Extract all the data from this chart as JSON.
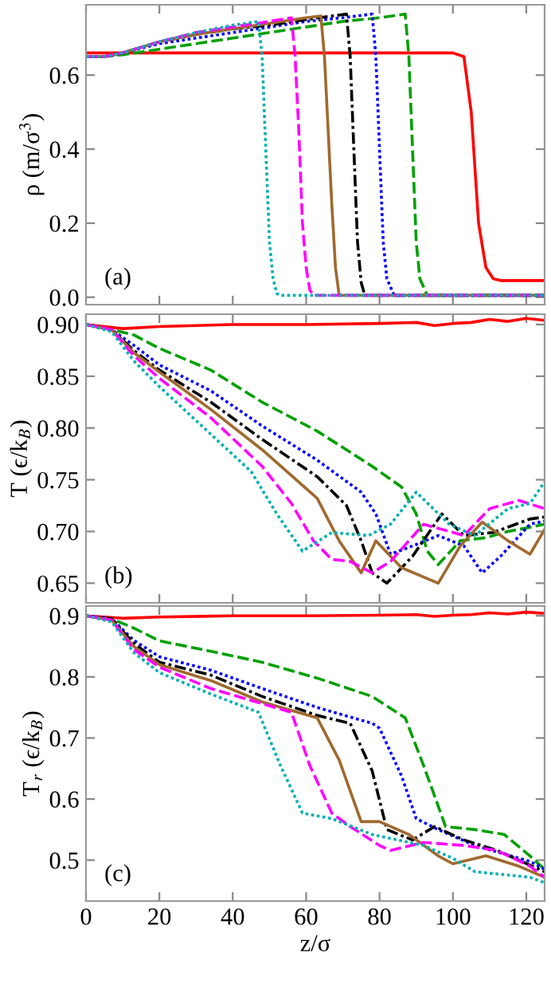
{
  "chart_data": [
    {
      "type": "line",
      "ylabel": "ρ (m/σ$^{3}$)",
      "annotations": [
        "(a)"
      ],
      "xlim": [
        0,
        125
      ],
      "xticks": [
        0,
        20,
        40,
        60,
        80,
        100,
        120
      ],
      "ylim": [
        -0.02,
        0.79
      ],
      "yticks": [
        {
          "value": 0,
          "label": "0.0"
        },
        0.2,
        0.4,
        0.6
      ],
      "tick_labels": "y",
      "grid": false,
      "legend": false,
      "marker": "none",
      "series": [
        {
          "color": "#ff0000",
          "line_style": "solid",
          "x": [
            0,
            5,
            10,
            20,
            40,
            60,
            80,
            100,
            103,
            105,
            107,
            109,
            111,
            113,
            125
          ],
          "values": [
            0.66,
            0.66,
            0.66,
            0.66,
            0.66,
            0.66,
            0.66,
            0.66,
            0.65,
            0.5,
            0.2,
            0.08,
            0.05,
            0.045,
            0.045
          ]
        },
        {
          "color": "#00a000",
          "line_style": "dashed",
          "x": [
            0,
            5,
            10,
            20,
            30,
            40,
            50,
            60,
            70,
            80,
            87,
            88,
            89,
            90,
            91,
            93,
            125
          ],
          "values": [
            0.65,
            0.65,
            0.655,
            0.67,
            0.685,
            0.7,
            0.715,
            0.73,
            0.745,
            0.755,
            0.765,
            0.65,
            0.4,
            0.15,
            0.05,
            0.005,
            0.005
          ]
        },
        {
          "color": "#0000ff",
          "line_style": "dotted",
          "x": [
            0,
            5,
            10,
            20,
            30,
            40,
            50,
            60,
            70,
            78,
            79,
            80,
            81,
            82,
            84,
            125
          ],
          "values": [
            0.65,
            0.65,
            0.66,
            0.685,
            0.7,
            0.715,
            0.73,
            0.745,
            0.755,
            0.765,
            0.65,
            0.4,
            0.15,
            0.05,
            0.005,
            0.005
          ]
        },
        {
          "color": "#000000",
          "line_style": "dashdot",
          "x": [
            0,
            5,
            10,
            20,
            30,
            40,
            50,
            60,
            71,
            72,
            73,
            74,
            75,
            76,
            125
          ],
          "values": [
            0.65,
            0.65,
            0.66,
            0.69,
            0.71,
            0.725,
            0.735,
            0.75,
            0.765,
            0.65,
            0.4,
            0.15,
            0.04,
            0.005,
            0.005
          ]
        },
        {
          "color": "#a0692e",
          "line_style": "solid",
          "x": [
            0,
            5,
            10,
            20,
            30,
            40,
            50,
            60,
            64,
            65,
            66,
            67,
            68,
            69,
            125
          ],
          "values": [
            0.65,
            0.65,
            0.66,
            0.69,
            0.71,
            0.725,
            0.74,
            0.755,
            0.76,
            0.65,
            0.45,
            0.25,
            0.08,
            0.005,
            0.005
          ]
        },
        {
          "color": "#ff00ff",
          "line_style": "dashed",
          "x": [
            0,
            5,
            10,
            20,
            30,
            40,
            50,
            56,
            57,
            58,
            59,
            60,
            61,
            62,
            125
          ],
          "values": [
            0.65,
            0.65,
            0.66,
            0.69,
            0.715,
            0.73,
            0.745,
            0.755,
            0.65,
            0.45,
            0.2,
            0.08,
            0.02,
            0.005,
            0.005
          ]
        },
        {
          "color": "#00b0b0",
          "line_style": "dotted",
          "x": [
            0,
            5,
            10,
            20,
            30,
            40,
            47,
            48,
            49,
            50,
            51,
            52,
            53,
            125
          ],
          "values": [
            0.65,
            0.65,
            0.66,
            0.69,
            0.715,
            0.735,
            0.745,
            0.65,
            0.4,
            0.15,
            0.05,
            0.01,
            0.005,
            0.005
          ]
        }
      ]
    },
    {
      "type": "line",
      "ylabel": "T (ϵ/k$_{B}$)",
      "annotations": [
        "(b)"
      ],
      "xlim": [
        0,
        125
      ],
      "xticks": [
        0,
        20,
        40,
        60,
        80,
        100,
        120
      ],
      "ylim": [
        0.631,
        0.91
      ],
      "yticks": [
        0.65,
        {
          "value": 0.7,
          "label": "0.70"
        },
        0.75,
        {
          "value": 0.8,
          "label": "0.80"
        },
        0.85,
        {
          "value": 0.9,
          "label": "0.90"
        }
      ],
      "tick_labels": "y",
      "grid": false,
      "legend": false,
      "marker": "none",
      "series": [
        {
          "color": "#ff0000",
          "line_style": "solid",
          "x": [
            0,
            5,
            10,
            20,
            40,
            60,
            80,
            90,
            95,
            100,
            105,
            110,
            115,
            120,
            125
          ],
          "values": [
            0.9,
            0.898,
            0.896,
            0.898,
            0.9,
            0.9,
            0.901,
            0.902,
            0.899,
            0.901,
            0.902,
            0.905,
            0.903,
            0.906,
            0.904
          ]
        },
        {
          "color": "#00a000",
          "line_style": "dashed",
          "x": [
            0,
            7,
            13,
            20,
            34,
            48,
            63,
            78,
            86,
            90,
            93,
            96,
            102,
            109,
            115,
            121,
            125
          ],
          "values": [
            0.9,
            0.895,
            0.89,
            0.877,
            0.856,
            0.825,
            0.797,
            0.763,
            0.743,
            0.717,
            0.681,
            0.668,
            0.691,
            0.694,
            0.7,
            0.704,
            0.707
          ]
        },
        {
          "color": "#0000ff",
          "line_style": "dotted",
          "x": [
            0,
            7,
            13,
            20,
            34,
            48,
            63,
            75,
            79,
            83,
            89,
            96,
            103,
            108,
            113,
            121,
            125
          ],
          "values": [
            0.9,
            0.895,
            0.88,
            0.861,
            0.836,
            0.802,
            0.769,
            0.738,
            0.717,
            0.678,
            0.686,
            0.696,
            0.686,
            0.66,
            0.676,
            0.707,
            0.71
          ]
        },
        {
          "color": "#000000",
          "line_style": "dashdot",
          "x": [
            0,
            7,
            13,
            20,
            34,
            48,
            63,
            71,
            75,
            78,
            82,
            89,
            97,
            103,
            111,
            121,
            125
          ],
          "values": [
            0.9,
            0.895,
            0.875,
            0.856,
            0.825,
            0.789,
            0.753,
            0.725,
            0.691,
            0.66,
            0.65,
            0.676,
            0.717,
            0.696,
            0.699,
            0.712,
            0.714
          ]
        },
        {
          "color": "#a0692e",
          "line_style": "solid",
          "x": [
            0,
            7,
            13,
            20,
            34,
            48,
            63,
            69,
            75,
            79,
            86,
            96,
            102,
            108,
            115,
            121,
            125
          ],
          "values": [
            0.9,
            0.895,
            0.873,
            0.854,
            0.818,
            0.779,
            0.732,
            0.691,
            0.66,
            0.691,
            0.665,
            0.65,
            0.686,
            0.709,
            0.691,
            0.678,
            0.702
          ]
        },
        {
          "color": "#ff00ff",
          "line_style": "dashed",
          "x": [
            0,
            7,
            13,
            20,
            34,
            48,
            56,
            62,
            67,
            72,
            78,
            83,
            92,
            97,
            103,
            110,
            118,
            125
          ],
          "values": [
            0.9,
            0.895,
            0.87,
            0.848,
            0.81,
            0.763,
            0.727,
            0.691,
            0.673,
            0.671,
            0.66,
            0.671,
            0.707,
            0.702,
            0.696,
            0.722,
            0.73,
            0.722
          ]
        },
        {
          "color": "#00b0b0",
          "line_style": "dotted",
          "x": [
            0,
            7,
            13,
            20,
            34,
            45,
            52,
            59,
            67,
            77,
            83,
            90,
            99,
            106,
            115,
            121,
            125
          ],
          "values": [
            0.9,
            0.893,
            0.865,
            0.84,
            0.794,
            0.758,
            0.717,
            0.681,
            0.699,
            0.696,
            0.707,
            0.738,
            0.707,
            0.696,
            0.722,
            0.727,
            0.748
          ]
        }
      ]
    },
    {
      "type": "line",
      "xlabel": "z/σ",
      "ylabel": "T$_{r}$ (ϵ/k$_{B}$)",
      "annotations": [
        "(c)"
      ],
      "xlim": [
        0,
        125
      ],
      "xticks": [
        0,
        20,
        40,
        60,
        80,
        100,
        120
      ],
      "ylim": [
        0.433,
        0.916
      ],
      "yticks": [
        0.5,
        0.6,
        0.7,
        0.8,
        0.9
      ],
      "grid": false,
      "legend": false,
      "marker": "none",
      "series": [
        {
          "color": "#ff0000",
          "line_style": "solid",
          "x": [
            0,
            5,
            10,
            20,
            40,
            60,
            80,
            90,
            95,
            100,
            105,
            110,
            115,
            120,
            125
          ],
          "values": [
            0.9,
            0.898,
            0.896,
            0.898,
            0.9,
            0.9,
            0.901,
            0.902,
            0.899,
            0.901,
            0.902,
            0.905,
            0.903,
            0.906,
            0.904
          ]
        },
        {
          "color": "#00a000",
          "line_style": "dashed",
          "x": [
            0,
            7,
            13,
            20,
            34,
            48,
            63,
            78,
            87,
            92,
            98,
            106,
            114,
            121,
            125
          ],
          "values": [
            0.9,
            0.895,
            0.88,
            0.859,
            0.842,
            0.824,
            0.798,
            0.768,
            0.733,
            0.655,
            0.555,
            0.55,
            0.542,
            0.507,
            0.485
          ]
        },
        {
          "color": "#0000ff",
          "line_style": "dotted",
          "x": [
            0,
            7,
            13,
            20,
            34,
            48,
            63,
            78,
            80,
            86,
            90,
            96,
            106,
            121,
            125
          ],
          "values": [
            0.9,
            0.895,
            0.86,
            0.833,
            0.811,
            0.781,
            0.75,
            0.724,
            0.716,
            0.638,
            0.568,
            0.55,
            0.524,
            0.498,
            0.485
          ]
        },
        {
          "color": "#000000",
          "line_style": "dashdot",
          "x": [
            0,
            7,
            13,
            20,
            34,
            48,
            63,
            72,
            78,
            82,
            89,
            95,
            103,
            112,
            125
          ],
          "values": [
            0.9,
            0.895,
            0.855,
            0.824,
            0.803,
            0.768,
            0.737,
            0.724,
            0.646,
            0.55,
            0.533,
            0.555,
            0.533,
            0.516,
            0.481
          ]
        },
        {
          "color": "#a0692e",
          "line_style": "solid",
          "x": [
            0,
            7,
            13,
            20,
            34,
            48,
            63,
            69,
            75,
            80,
            88,
            96,
            100,
            109,
            118,
            125
          ],
          "values": [
            0.9,
            0.893,
            0.85,
            0.82,
            0.794,
            0.759,
            0.733,
            0.664,
            0.563,
            0.563,
            0.542,
            0.507,
            0.494,
            0.507,
            0.49,
            0.472
          ]
        },
        {
          "color": "#ff00ff",
          "line_style": "dashed",
          "x": [
            0,
            7,
            13,
            20,
            34,
            56,
            61,
            67,
            72,
            80,
            83,
            92,
            103,
            112,
            121,
            125
          ],
          "values": [
            0.9,
            0.893,
            0.845,
            0.816,
            0.781,
            0.742,
            0.655,
            0.577,
            0.555,
            0.524,
            0.516,
            0.529,
            0.524,
            0.516,
            0.49,
            0.472
          ]
        },
        {
          "color": "#00b0b0",
          "line_style": "dotted",
          "x": [
            0,
            7,
            13,
            20,
            34,
            47,
            53,
            59,
            67,
            78,
            92,
            100,
            106,
            121,
            125
          ],
          "values": [
            0.9,
            0.89,
            0.84,
            0.807,
            0.772,
            0.742,
            0.655,
            0.577,
            0.568,
            0.542,
            0.524,
            0.503,
            0.481,
            0.472,
            0.463
          ]
        }
      ]
    }
  ]
}
